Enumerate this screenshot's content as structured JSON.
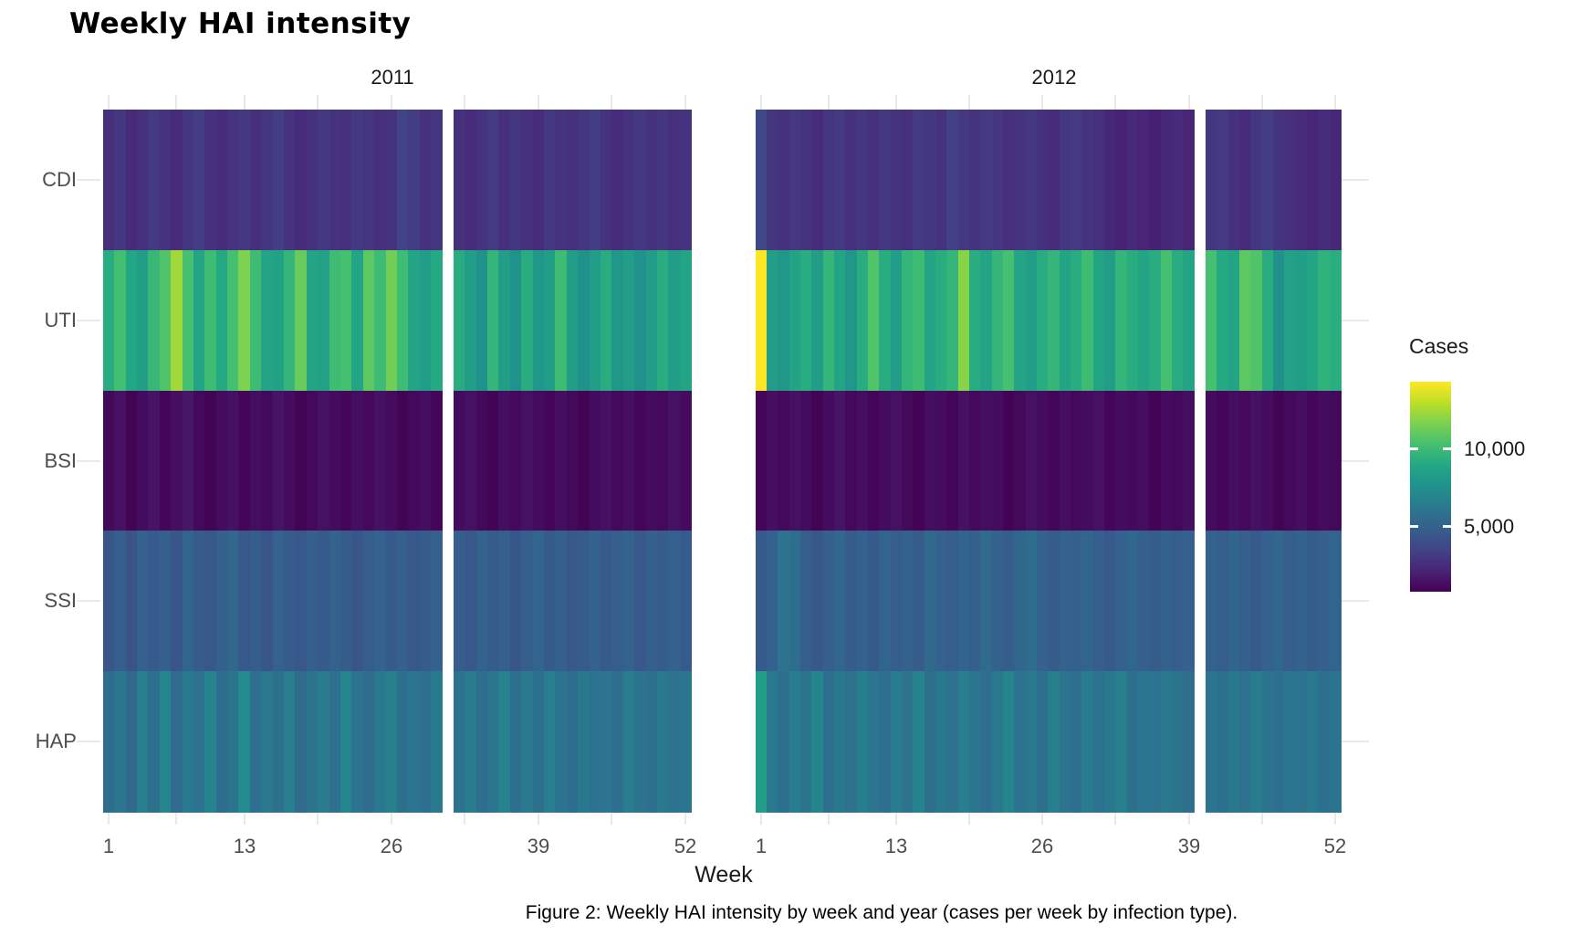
{
  "page": {
    "caption": "Figure 2: Weekly HAI intensity by week and year (cases per week by infection type)."
  },
  "colors": {
    "background": "#ffffff",
    "grid": "#e9e9e9",
    "axis_text": "#4d4d4d",
    "text": "#1a1a1a",
    "viridis_min": "#440154",
    "viridis_max": "#fde725"
  },
  "chart_data": {
    "type": "heatmap",
    "title": "Weekly HAI intensity",
    "xlabel": "Week",
    "x_ticks": [
      1,
      13,
      26,
      39,
      52
    ],
    "x_tick_labels": [
      "1",
      "13",
      "26",
      "39",
      "52"
    ],
    "x_minor_breaks": [
      7,
      19.5,
      32.5,
      45.5
    ],
    "y_categories_top_to_bottom": [
      "CDI",
      "UTI",
      "BSI",
      "SSI",
      "HAP"
    ],
    "legend": {
      "title": "Cases",
      "ticks": [
        10000,
        5000
      ],
      "tick_labels": [
        "10,000",
        "5,000"
      ],
      "limits": [
        800,
        14350
      ],
      "palette": "viridis"
    },
    "facets": [
      {
        "year": "2011",
        "missing_week": 31,
        "rows": [
          {
            "type": "CDI",
            "values": [
              2600,
              2900,
              2400,
              2700,
              3100,
              2800,
              2500,
              2900,
              3200,
              2700,
              2500,
              2800,
              3000,
              2600,
              2900,
              3300,
              2800,
              2500,
              2700,
              3000,
              2800,
              2600,
              3100,
              2900,
              2600,
              2800,
              3500,
              3200,
              2700,
              2900,
              null,
              2700,
              2500,
              2800,
              3100,
              2600,
              2900,
              2700,
              2500,
              3000,
              2800,
              2600,
              2900,
              3200,
              2700,
              2500,
              2800,
              3000,
              2700,
              2900,
              2600,
              2800
            ]
          },
          {
            "type": "UTI",
            "values": [
              9200,
              10200,
              8900,
              8300,
              9800,
              10600,
              12400,
              10300,
              8700,
              10100,
              9000,
              10300,
              11700,
              10100,
              8700,
              8500,
              9700,
              11200,
              8700,
              8500,
              10100,
              10300,
              8700,
              10900,
              10100,
              11400,
              10100,
              8700,
              8300,
              9000,
              null,
              9200,
              8300,
              7600,
              9700,
              8300,
              7600,
              9200,
              7900,
              8300,
              10100,
              8300,
              7600,
              8300,
              9200,
              7900,
              8300,
              7600,
              8300,
              9200,
              8300,
              8700
            ]
          },
          {
            "type": "BSI",
            "values": [
              1100,
              1400,
              900,
              1200,
              1500,
              1000,
              1300,
              1600,
              1100,
              900,
              1200,
              1400,
              1000,
              1300,
              1100,
              1500,
              1200,
              900,
              1100,
              1400,
              1200,
              1000,
              1300,
              1100,
              1400,
              1200,
              900,
              1100,
              1300,
              1000,
              null,
              1200,
              1400,
              1100,
              900,
              1300,
              1100,
              1400,
              1200,
              1000,
              1300,
              1100,
              900,
              1200,
              1400,
              1100,
              1300,
              1000,
              1200,
              1100,
              1400,
              1200
            ]
          },
          {
            "type": "SSI",
            "values": [
              4400,
              4800,
              4300,
              5000,
              4600,
              4900,
              4400,
              5200,
              4700,
              4500,
              4900,
              5300,
              4600,
              4800,
              4400,
              5000,
              4700,
              4500,
              4900,
              4600,
              5100,
              4700,
              4400,
              4800,
              5000,
              4600,
              4900,
              4500,
              4700,
              5000,
              null,
              4800,
              4500,
              5100,
              4700,
              4900,
              4400,
              4800,
              5200,
              4600,
              4900,
              4500,
              4700,
              5000,
              4600,
              4800,
              5100,
              4500,
              4900,
              4700,
              5000,
              4600
            ]
          },
          {
            "type": "HAP",
            "values": [
              5600,
              6100,
              5400,
              6600,
              5800,
              7000,
              5500,
              6300,
              5900,
              6800,
              5600,
              6000,
              7200,
              5700,
              6200,
              5800,
              6600,
              5500,
              6000,
              6400,
              5700,
              6900,
              5900,
              5600,
              6200,
              6700,
              5800,
              6100,
              5700,
              6300,
              null,
              5900,
              6400,
              5600,
              6100,
              6800,
              5700,
              6200,
              5800,
              6500,
              6000,
              5600,
              6300,
              5900,
              6100,
              5700,
              6400,
              6000,
              5800,
              6200,
              5900,
              6100
            ]
          }
        ]
      },
      {
        "year": "2012",
        "missing_week": 40,
        "rows": [
          {
            "type": "CDI",
            "values": [
              3800,
              2900,
              2700,
              3000,
              2800,
              2500,
              2900,
              3100,
              2700,
              2900,
              2600,
              3000,
              2800,
              2600,
              3100,
              2900,
              2700,
              3400,
              3000,
              2800,
              3100,
              2900,
              2600,
              2800,
              3000,
              2700,
              2500,
              2900,
              3100,
              2800,
              2600,
              2300,
              2100,
              2400,
              2200,
              2000,
              2300,
              2500,
              2200,
              null,
              2900,
              3100,
              2700,
              2500,
              2900,
              3200,
              2800,
              2600,
              2400,
              2200,
              2500,
              2300
            ]
          },
          {
            "type": "UTI",
            "values": [
              14350,
              8300,
              7900,
              8700,
              9200,
              8300,
              9700,
              8700,
              7900,
              9200,
              10600,
              9200,
              8300,
              9700,
              10100,
              8700,
              9200,
              9700,
              11900,
              9200,
              8700,
              9700,
              10300,
              8700,
              8300,
              9200,
              9700,
              8700,
              9200,
              10100,
              8700,
              8300,
              9700,
              9200,
              8700,
              9200,
              10300,
              9200,
              8700,
              null,
              10300,
              9000,
              8700,
              10900,
              10600,
              9200,
              7600,
              8500,
              8300,
              8700,
              9500,
              9300
            ]
          },
          {
            "type": "BSI",
            "values": [
              1000,
              1300,
              1100,
              1400,
              1200,
              900,
              1200,
              1500,
              1100,
              1300,
              1000,
              1200,
              1400,
              1100,
              900,
              1300,
              1200,
              1000,
              1400,
              1100,
              1300,
              1200,
              900,
              1100,
              1400,
              1200,
              1000,
              1300,
              1100,
              1200,
              1400,
              1000,
              1200,
              1100,
              1300,
              900,
              1200,
              1100,
              1300,
              null,
              1200,
              1000,
              1300,
              1100,
              1400,
              1200,
              900,
              1100,
              1300,
              1000,
              1200,
              1100
            ]
          },
          {
            "type": "SSI",
            "values": [
              4600,
              5000,
              5900,
              5600,
              4800,
              4500,
              4900,
              5300,
              4700,
              5000,
              4600,
              5200,
              4800,
              5100,
              4700,
              5400,
              5000,
              4800,
              5200,
              4900,
              5500,
              5100,
              4800,
              5300,
              5600,
              5000,
              4700,
              5100,
              4900,
              5200,
              4800,
              4600,
              5000,
              5300,
              4900,
              4700,
              5100,
              4800,
              5000,
              null,
              5100,
              4800,
              5200,
              4900,
              4600,
              5000,
              5300,
              4800,
              5100,
              4700,
              4900,
              5200
            ]
          },
          {
            "type": "HAP",
            "values": [
              8300,
              6200,
              5800,
              6500,
              6000,
              6900,
              5700,
              6300,
              5900,
              6600,
              6100,
              5700,
              6400,
              6000,
              6800,
              5800,
              6200,
              5900,
              6500,
              6100,
              5700,
              6300,
              6900,
              5900,
              6200,
              5800,
              6600,
              6000,
              5700,
              6400,
              5900,
              6200,
              6700,
              5800,
              6100,
              5900,
              6300,
              6000,
              5800,
              null,
              6100,
              5800,
              6200,
              5900,
              6400,
              6000,
              5700,
              6100,
              5900,
              6300,
              5800,
              6000
            ]
          }
        ]
      }
    ]
  }
}
